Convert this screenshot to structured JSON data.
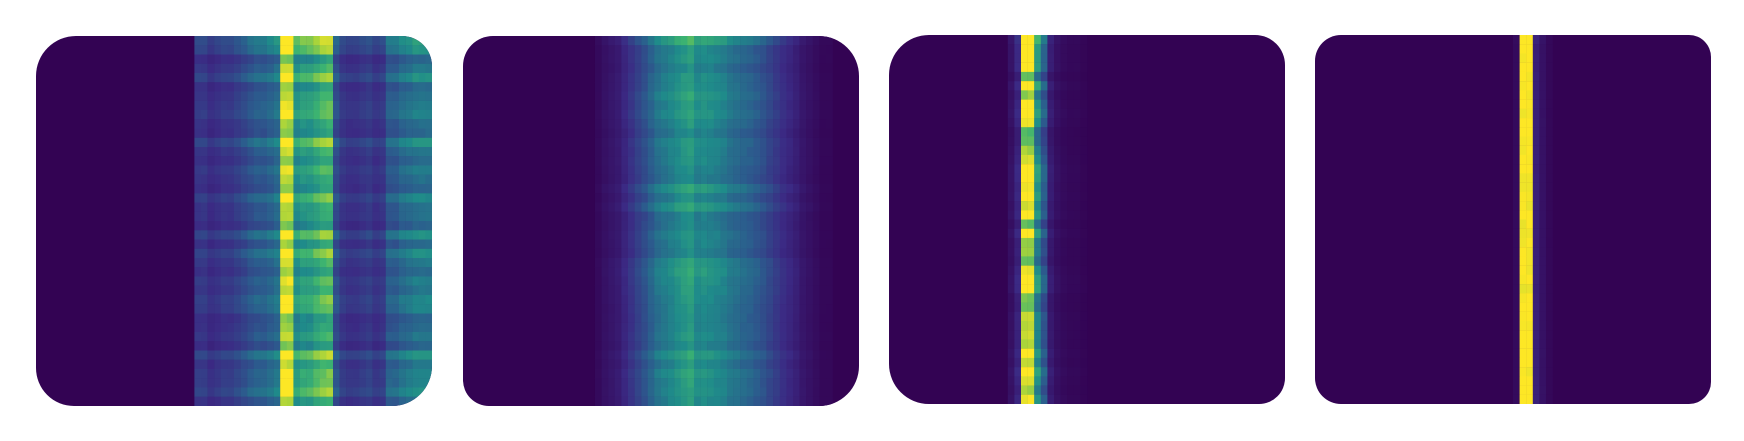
{
  "figure": {
    "background": "#ffffff"
  },
  "colormap": {
    "name": "viridis",
    "stops": [
      "#330353",
      "#3b2a84",
      "#2c5b8d",
      "#1f8b8a",
      "#3cb371",
      "#a6d33c",
      "#fde725"
    ]
  },
  "chart_data": [
    {
      "type": "heatmap",
      "title": "",
      "xlabel": "",
      "ylabel": "",
      "n_rows": 40,
      "n_cols": 60,
      "column_intensity": [
        0,
        0,
        0,
        0,
        0,
        0,
        0,
        0,
        0,
        0,
        0,
        0,
        0,
        0,
        0,
        0,
        0,
        0,
        0,
        0,
        0,
        0,
        0,
        0,
        0.22,
        0.22,
        0.18,
        0.2,
        0.22,
        0.22,
        0.25,
        0.28,
        0.32,
        0.35,
        0.35,
        0.38,
        0.42,
        0.95,
        0.95,
        0.55,
        0.6,
        0.6,
        0.65,
        0.7,
        0.72,
        0.3,
        0.22,
        0.2,
        0.2,
        0.22,
        0.24,
        0.2,
        0.22,
        0.35,
        0.35,
        0.4,
        0.42,
        0.45,
        0.45,
        0.45
      ],
      "row_variation": 0.22
    },
    {
      "type": "heatmap",
      "title": "",
      "xlabel": "",
      "ylabel": "",
      "n_rows": 40,
      "n_cols": 60,
      "column_intensity": [
        0,
        0,
        0,
        0,
        0,
        0,
        0,
        0,
        0,
        0,
        0,
        0,
        0,
        0,
        0,
        0,
        0,
        0,
        0,
        0,
        0.03,
        0.06,
        0.08,
        0.1,
        0.15,
        0.2,
        0.25,
        0.3,
        0.36,
        0.42,
        0.45,
        0.48,
        0.52,
        0.55,
        0.58,
        0.5,
        0.52,
        0.5,
        0.48,
        0.46,
        0.42,
        0.4,
        0.38,
        0.36,
        0.33,
        0.3,
        0.26,
        0.22,
        0.18,
        0.15,
        0.12,
        0.08,
        0.06,
        0.04,
        0.02,
        0.02,
        0,
        0,
        0,
        0
      ],
      "row_variation": 0.12
    },
    {
      "type": "heatmap",
      "title": "",
      "xlabel": "",
      "ylabel": "",
      "n_rows": 40,
      "n_cols": 60,
      "column_intensity": [
        0,
        0,
        0,
        0,
        0,
        0,
        0,
        0,
        0,
        0,
        0,
        0,
        0,
        0,
        0,
        0,
        0,
        0,
        0.06,
        0.14,
        0.92,
        0.92,
        0.5,
        0.32,
        0.1,
        0.05,
        0.03,
        0.02,
        0.02,
        0.01,
        0,
        0,
        0,
        0,
        0,
        0,
        0,
        0,
        0,
        0,
        0,
        0,
        0,
        0,
        0,
        0,
        0,
        0,
        0,
        0,
        0,
        0,
        0,
        0,
        0,
        0,
        0,
        0,
        0,
        0
      ],
      "row_variation": 0.25
    },
    {
      "type": "heatmap",
      "title": "",
      "xlabel": "",
      "ylabel": "",
      "n_rows": 40,
      "n_cols": 60,
      "column_intensity": [
        0,
        0,
        0,
        0,
        0,
        0,
        0,
        0,
        0,
        0,
        0,
        0,
        0,
        0,
        0,
        0,
        0,
        0,
        0,
        0,
        0,
        0,
        0,
        0,
        0,
        0,
        0,
        0,
        0,
        0,
        0.03,
        1,
        1,
        0.12,
        0.06,
        0.02,
        0,
        0,
        0,
        0,
        0,
        0,
        0,
        0,
        0,
        0,
        0,
        0,
        0,
        0,
        0,
        0,
        0,
        0,
        0,
        0,
        0,
        0,
        0,
        0
      ],
      "row_variation": 0.02
    }
  ]
}
